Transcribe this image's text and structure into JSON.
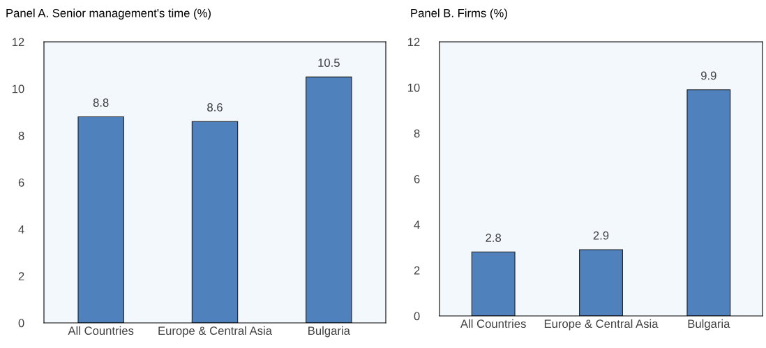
{
  "chart_data": [
    {
      "type": "bar",
      "title": "Panel A. Senior management's time (%)",
      "categories": [
        "All Countries",
        "Europe & Central Asia",
        "Bulgaria"
      ],
      "values": [
        8.8,
        8.6,
        10.5
      ],
      "color": "#4f81bd",
      "ylim": [
        0,
        12
      ],
      "yticks": [
        0,
        2,
        4,
        6,
        8,
        10,
        12
      ],
      "data_labels": true,
      "grid": false
    },
    {
      "type": "bar",
      "title": "Panel B. Firms (%)",
      "categories": [
        "All Countries",
        "Europe & Central Asia",
        "Bulgaria"
      ],
      "values": [
        2.8,
        2.9,
        9.9
      ],
      "color": "#4f81bd",
      "ylim": [
        0,
        12
      ],
      "yticks": [
        0,
        2,
        4,
        6,
        8,
        10,
        12
      ],
      "data_labels": true,
      "grid": false
    }
  ]
}
